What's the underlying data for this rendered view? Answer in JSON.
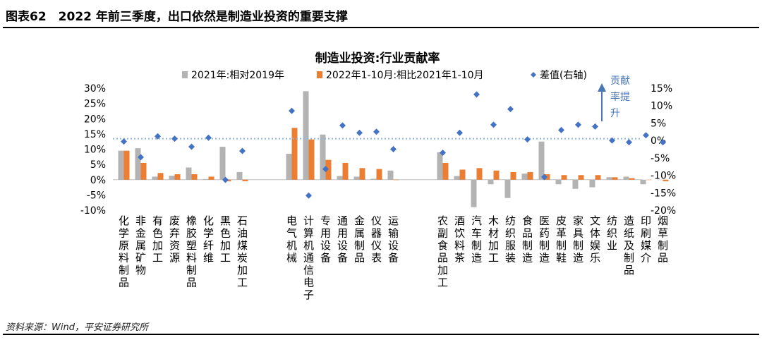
{
  "figure": {
    "title": "图表62　2022 年前三季度，出口依然是制造业投资的重要支撑",
    "source": "资料来源：Wind，平安证券研究所"
  },
  "chart_data": {
    "type": "bar",
    "title": "制造业投资:行业贡献率",
    "categories": [
      "化学原料制品",
      "非金属矿物",
      "有色加工",
      "废弃资源",
      "橡胶塑料制品",
      "化学纤维",
      "黑色加工",
      "石油煤炭加工",
      "电气机械",
      "计算机通信电子",
      "专用设备",
      "通用设备",
      "金属制品",
      "仪器仪表",
      "运输设备",
      "农副食品加工",
      "酒饮料茶",
      "汽车制造",
      "木材加工",
      "纺织服装",
      "食品制造",
      "医药制造",
      "皮革制鞋",
      "家具制造",
      "文体娱乐",
      "纺织业",
      "造纸及制品",
      "印刷媒介",
      "烟草制品"
    ],
    "groups": [
      [
        0,
        7
      ],
      [
        8,
        14
      ],
      [
        15,
        28
      ]
    ],
    "series": [
      {
        "name": "2021年:相对2019年",
        "axis": "left",
        "type": "bar",
        "color": "#b3b3b3",
        "values": [
          9.5,
          10.3,
          1.0,
          1.3,
          4.0,
          0.2,
          10.8,
          2.5,
          8.5,
          29.0,
          14.8,
          1.2,
          1.0,
          0.3,
          3.0,
          9.0,
          1.2,
          -9.0,
          -1.5,
          -6.0,
          2.0,
          12.5,
          -1.5,
          -3.0,
          -2.5,
          0.8,
          1.0,
          -1.5,
          0.0
        ]
      },
      {
        "name": "2022年1-10月:相比2021年1-10月",
        "axis": "left",
        "type": "bar",
        "color": "#ed7d31",
        "values": [
          9.5,
          5.5,
          2.2,
          1.8,
          1.8,
          1.0,
          -0.5,
          -0.5,
          17.0,
          13.2,
          6.5,
          5.5,
          3.8,
          3.5,
          0.0,
          5.5,
          3.3,
          3.8,
          3.0,
          2.5,
          2.5,
          1.8,
          1.5,
          1.5,
          1.5,
          0.8,
          0.5,
          0.0,
          -0.5
        ]
      },
      {
        "name": "差值(右轴)",
        "axis": "right",
        "type": "scatter",
        "color": "#4472c4",
        "values": [
          -0.3,
          -4.8,
          1.2,
          0.5,
          -1.8,
          0.8,
          -11.3,
          -3.0,
          8.5,
          -15.8,
          -8.2,
          4.3,
          2.2,
          2.5,
          -2.5,
          -3.5,
          2.2,
          13.2,
          4.5,
          9.0,
          0.3,
          -10.5,
          3.0,
          4.5,
          4.0,
          0.0,
          -0.5,
          1.5,
          -0.5
        ]
      }
    ],
    "left_axis": {
      "min": -10,
      "max": 30,
      "ticks": [
        "-10%",
        "-5%",
        "0%",
        "5%",
        "10%",
        "15%",
        "20%",
        "25%",
        "30%"
      ]
    },
    "right_axis": {
      "min": -20,
      "max": 15,
      "ticks": [
        "-20%",
        "-15%",
        "-10%",
        "-5%",
        "0%",
        "5%",
        "10%",
        "15%"
      ]
    },
    "reference_line": {
      "axis": "right",
      "value": 0.5,
      "style": "dotted",
      "color": "#8eb4e3"
    },
    "annotation": {
      "text": "贡献率提升",
      "arrow": "up",
      "color": "#4a76b4"
    },
    "legend_position": "top"
  }
}
